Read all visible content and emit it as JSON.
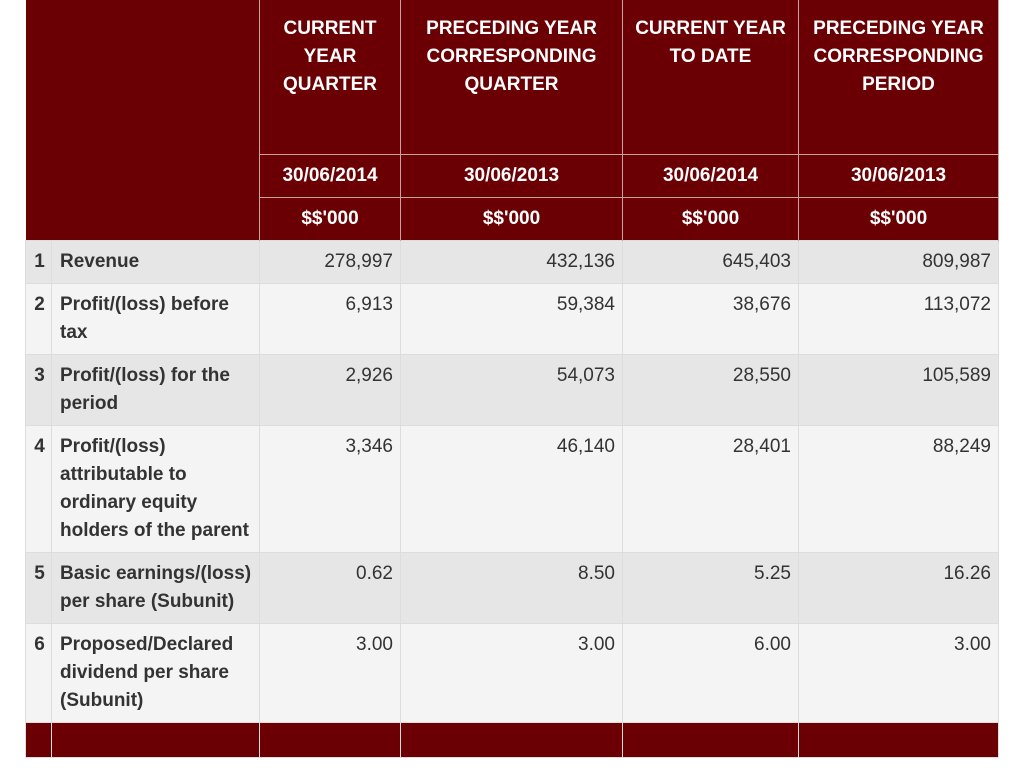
{
  "columns": [
    {
      "title": "CURRENT YEAR QUARTER",
      "date": "30/06/2014",
      "unit": "$$'000"
    },
    {
      "title": "PRECEDING YEAR CORRESPONDING QUARTER",
      "date": "30/06/2013",
      "unit": "$$'000"
    },
    {
      "title": "CURRENT YEAR TO DATE",
      "date": "30/06/2014",
      "unit": "$$'000"
    },
    {
      "title": "PRECEDING YEAR CORRESPONDING PERIOD",
      "date": "30/06/2013",
      "unit": "$$'000"
    }
  ],
  "rows": [
    {
      "num": "1",
      "label": "Revenue",
      "values": [
        "278,997",
        "432,136",
        "645,403",
        "809,987"
      ]
    },
    {
      "num": "2",
      "label": "Profit/(loss) before tax",
      "values": [
        "6,913",
        "59,384",
        "38,676",
        "113,072"
      ]
    },
    {
      "num": "3",
      "label": "Profit/(loss) for the period",
      "values": [
        "2,926",
        "54,073",
        "28,550",
        "105,589"
      ]
    },
    {
      "num": "4",
      "label": "Profit/(loss) attributable to ordinary equity holders of the parent",
      "values": [
        "3,346",
        "46,140",
        "28,401",
        "88,249"
      ]
    },
    {
      "num": "5",
      "label": "Basic earnings/(loss) per share (Subunit)",
      "values": [
        "0.62",
        "8.50",
        "5.25",
        "16.26"
      ]
    },
    {
      "num": "6",
      "label": "Proposed/Declared dividend per share (Subunit)",
      "values": [
        "3.00",
        "3.00",
        "6.00",
        "3.00"
      ]
    }
  ]
}
